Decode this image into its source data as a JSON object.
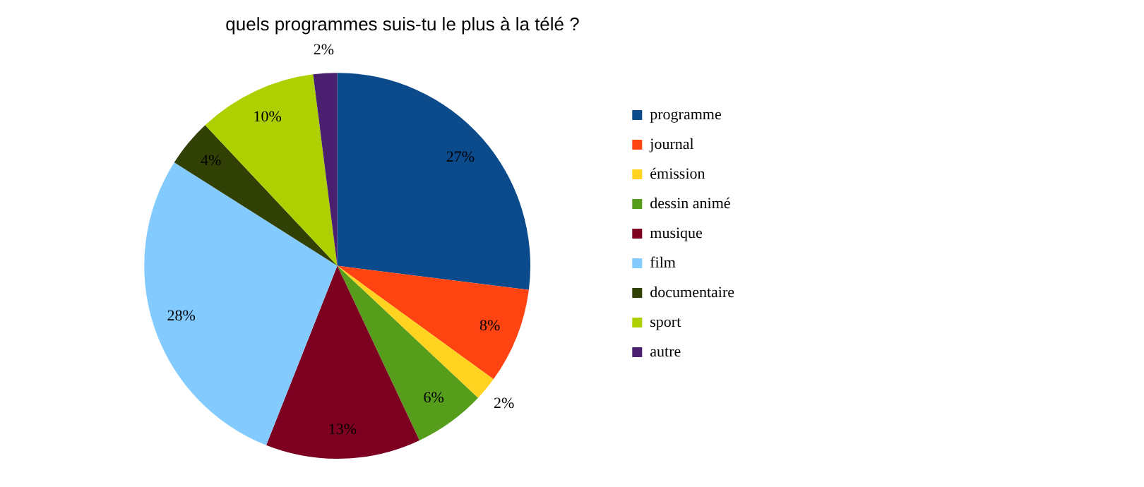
{
  "chart_data": {
    "type": "pie",
    "title": "quels programmes suis-tu le plus à la télé ?",
    "categories": [
      "programme",
      "journal",
      "émission",
      "dessin animé",
      "musique",
      "film",
      "documentaire",
      "sport",
      "autre"
    ],
    "values": [
      27,
      8,
      2,
      6,
      13,
      28,
      4,
      10,
      2
    ],
    "colors": [
      "#0b4a8b",
      "#ff4411",
      "#ffd320",
      "#579d1c",
      "#7e0021",
      "#83caff",
      "#314004",
      "#aecf00",
      "#4b1f6f"
    ],
    "value_labels": [
      "27%",
      "8%",
      "2%",
      "6%",
      "13%",
      "28%",
      "4%",
      "10%",
      "2%"
    ],
    "legend": "right"
  }
}
